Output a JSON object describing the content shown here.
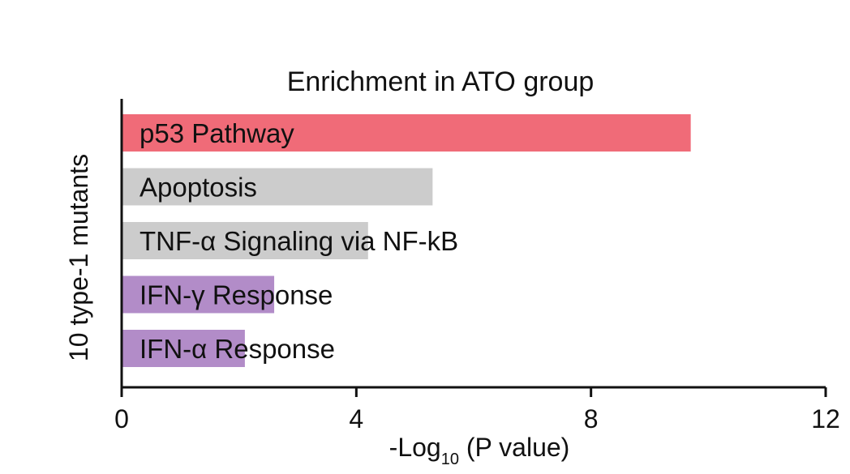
{
  "chart_data": {
    "type": "bar",
    "orientation": "horizontal",
    "title": "Enrichment in ATO group",
    "xlabel_main": "-Log",
    "xlabel_sub": "10",
    "xlabel_rest": " (P value)",
    "ylabel": "10 type-1 mutants",
    "xlim": [
      0,
      12
    ],
    "xticks": [
      "0",
      "4",
      "8",
      "12"
    ],
    "grid": false,
    "bars": [
      {
        "label": "p53 Pathway",
        "value": 9.7,
        "color": "#f06b78"
      },
      {
        "label": "Apoptosis",
        "value": 5.3,
        "color": "#cccccc"
      },
      {
        "label": "TNF-α Signaling via NF-kB",
        "value": 4.2,
        "color": "#cccccc"
      },
      {
        "label": "IFN-γ Response",
        "value": 2.6,
        "color": "#b28cc8"
      },
      {
        "label": "IFN-α Response",
        "value": 2.1,
        "color": "#b28cc8"
      }
    ]
  }
}
